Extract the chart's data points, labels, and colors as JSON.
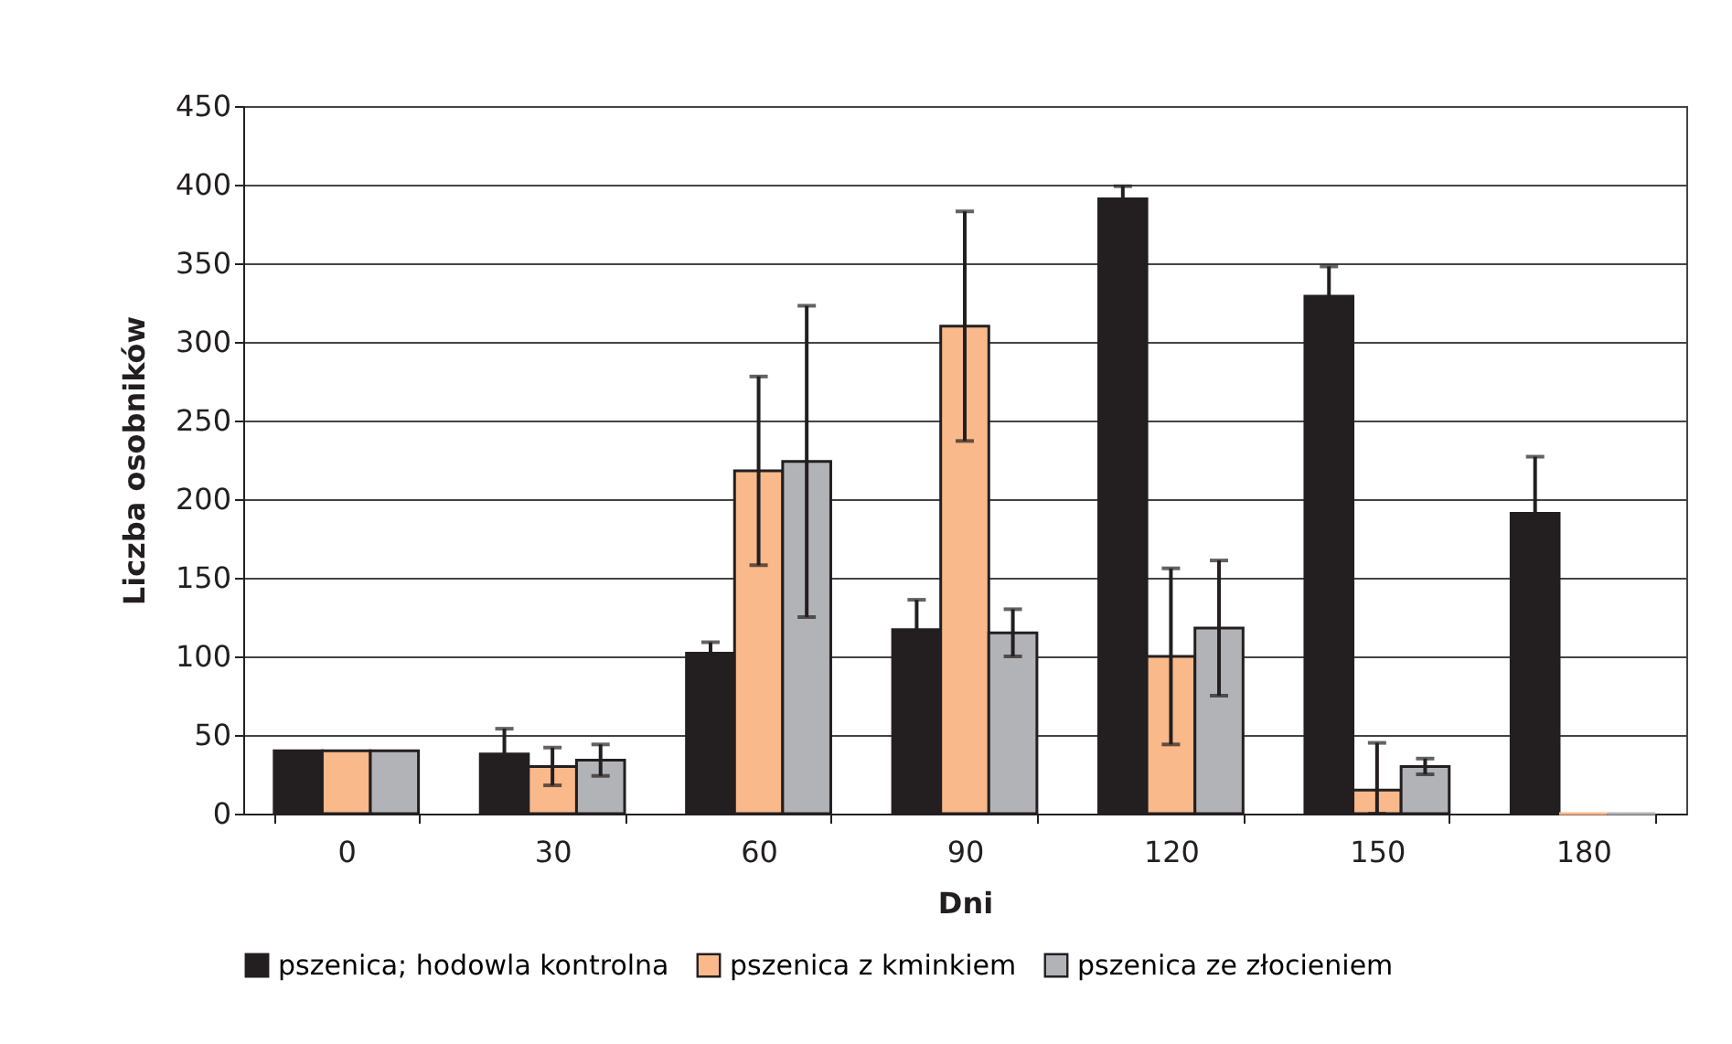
{
  "chart_data": {
    "type": "bar",
    "xlabel": "Dni",
    "ylabel": "Liczba osobników",
    "categories": [
      "0",
      "30",
      "60",
      "90",
      "120",
      "150",
      "180"
    ],
    "series": [
      {
        "name": "pszenica; hodowla kontrolna",
        "color": "#231f20",
        "values": [
          40,
          38,
          102,
          117,
          391,
          329,
          191
        ],
        "errors": [
          null,
          16,
          7,
          19,
          8,
          19,
          36
        ]
      },
      {
        "name": "pszenica z kminkiem",
        "color": "#f9b98a",
        "values": [
          40,
          30,
          218,
          310,
          100,
          15,
          0
        ],
        "errors": [
          null,
          12,
          60,
          73,
          56,
          [
            0,
            45
          ],
          null
        ]
      },
      {
        "name": "pszenica ze złocieniem",
        "color": "#b2b3b6",
        "values": [
          40,
          34,
          224,
          115,
          118,
          30,
          0
        ],
        "errors": [
          null,
          10,
          99,
          15,
          43,
          5,
          null
        ]
      }
    ],
    "ylim": [
      0,
      450
    ],
    "yticks": [
      0,
      50,
      100,
      150,
      200,
      250,
      300,
      350,
      400,
      450
    ],
    "grid": "y",
    "legend": "bottom"
  }
}
